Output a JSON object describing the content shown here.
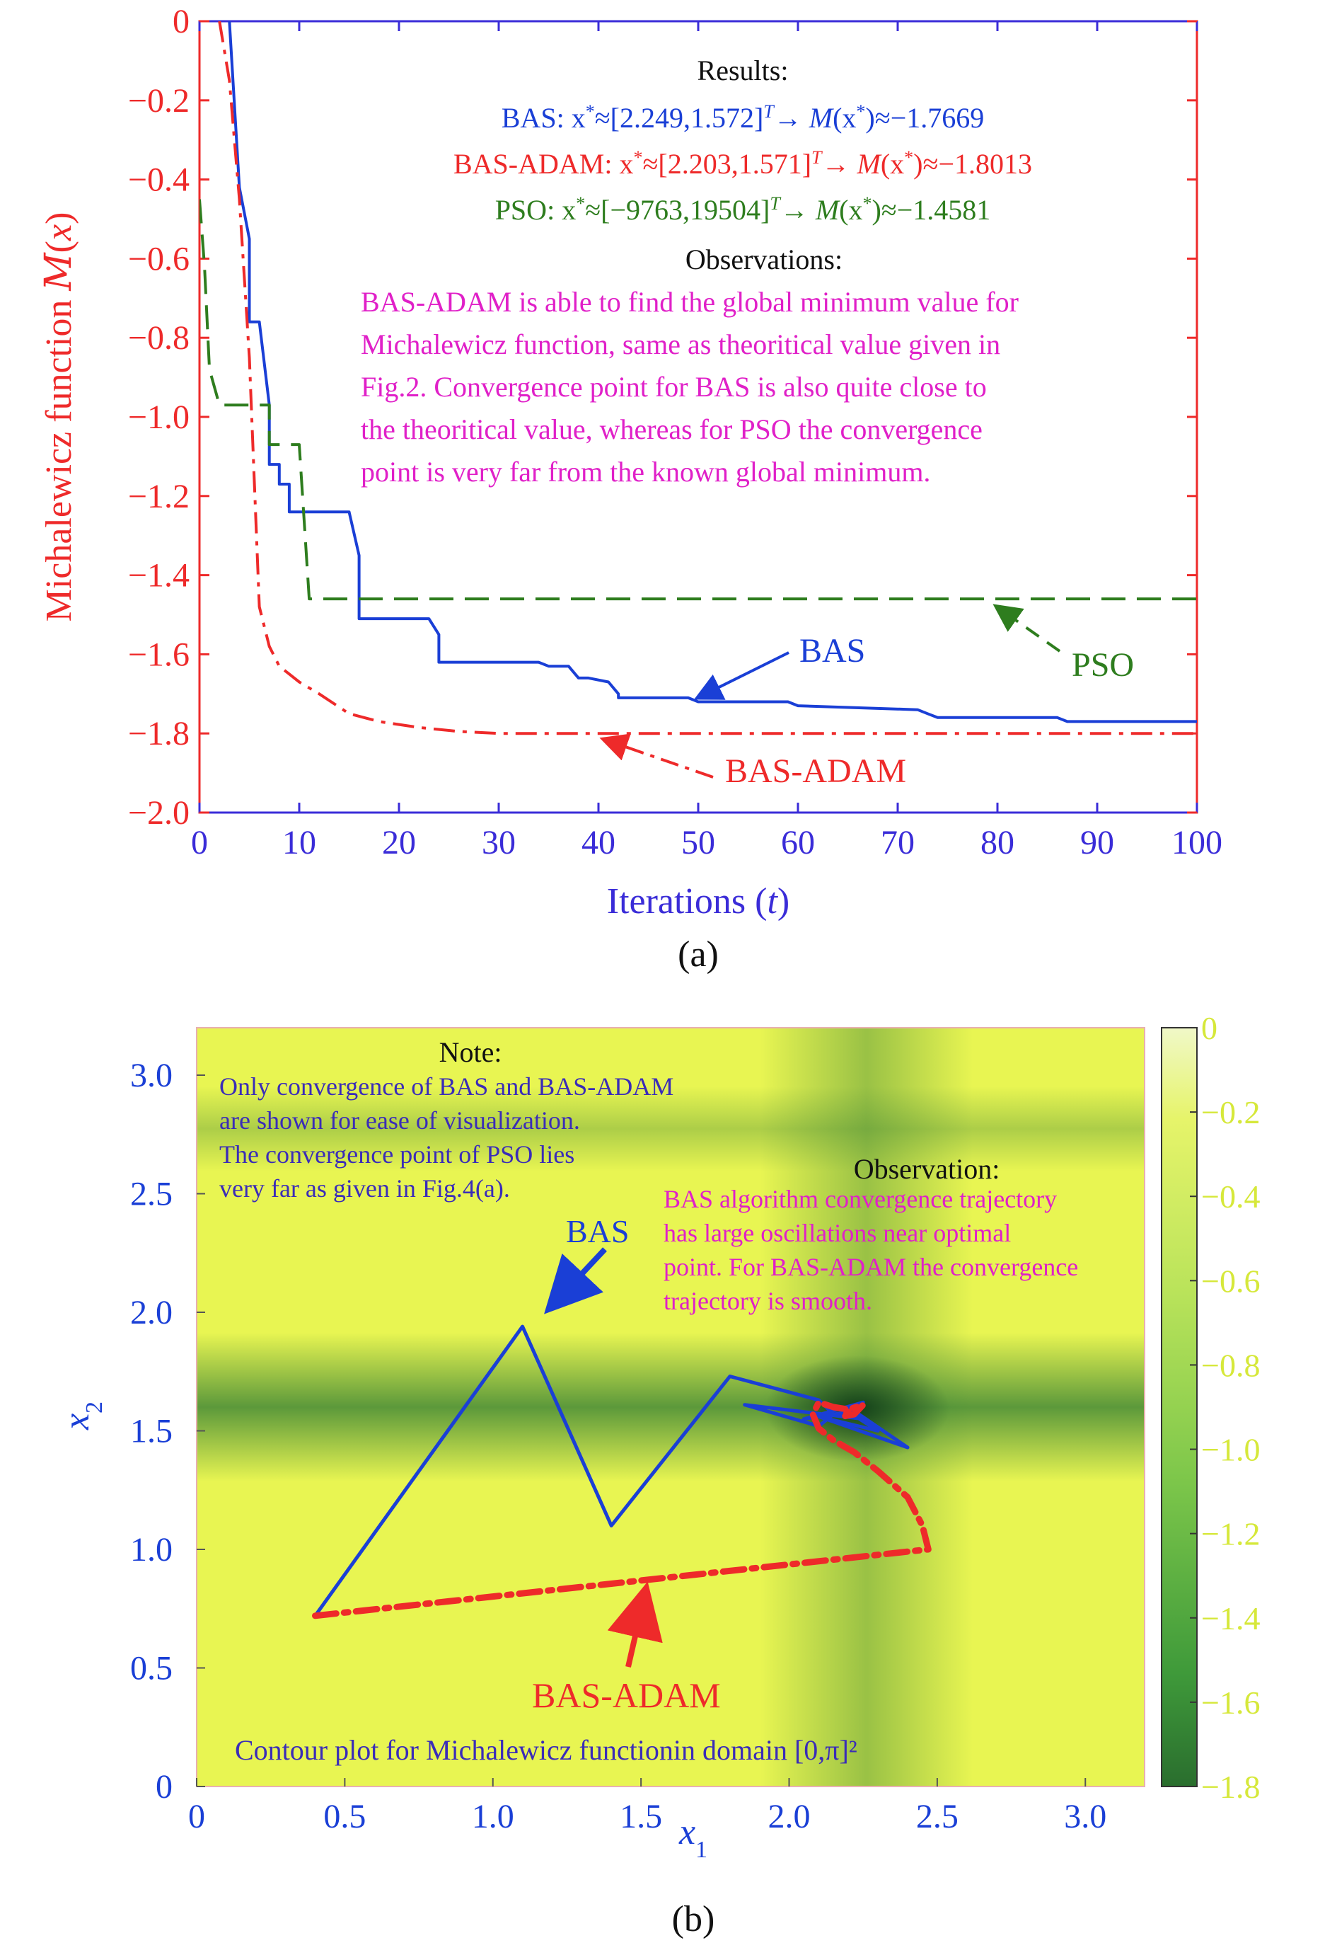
{
  "colors": {
    "bas": "#1a3fd6",
    "bas_adam": "#ee2a2a",
    "pso": "#2e7d1e",
    "observation_text": "#e020c8",
    "note_text": "#3a2cb8",
    "axis_a_y": "#ee2a2a",
    "axis_a_x": "#3a2cd8",
    "axis_b": "#1a3fd6",
    "contour_light": "#e8f552",
    "contour_mid": "#8fcf4a",
    "contour_dark": "#2d7a33",
    "colorbar_tick_text": "#d6e83a"
  },
  "chart_data": [
    {
      "id": "a",
      "type": "line",
      "panel_label": "(a)",
      "xlabel": "Iterations (t)",
      "ylabel": "Michalewicz function M(x)",
      "xlim": [
        0,
        100
      ],
      "ylim": [
        -2.0,
        0
      ],
      "xticks": [
        0,
        10,
        20,
        30,
        40,
        50,
        60,
        70,
        80,
        90,
        100
      ],
      "yticks": [
        0,
        -0.2,
        -0.4,
        -0.6,
        -0.8,
        -1.0,
        -1.2,
        -1.4,
        -1.6,
        -1.8,
        -2.0
      ],
      "xtick_labels": [
        "0",
        "10",
        "20",
        "30",
        "40",
        "50",
        "60",
        "70",
        "80",
        "90",
        "100"
      ],
      "ytick_labels": [
        "0",
        "−0.2",
        "−0.4",
        "−0.6",
        "−0.8",
        "−1.0",
        "−1.2",
        "−1.4",
        "−1.6",
        "−1.8",
        "−2.0"
      ],
      "grid": false,
      "series": [
        {
          "name": "BAS",
          "style": "solid",
          "x": [
            3,
            4,
            5,
            5,
            6,
            7,
            7,
            8,
            8,
            9,
            9,
            15,
            16,
            16,
            23,
            24,
            24,
            34,
            35,
            37,
            38,
            39,
            41,
            42,
            42,
            49,
            50,
            59,
            60,
            72,
            73,
            74,
            86,
            87,
            100
          ],
          "y": [
            0,
            -0.42,
            -0.55,
            -0.76,
            -0.76,
            -0.97,
            -1.12,
            -1.12,
            -1.17,
            -1.17,
            -1.24,
            -1.24,
            -1.35,
            -1.51,
            -1.51,
            -1.55,
            -1.62,
            -1.62,
            -1.63,
            -1.63,
            -1.66,
            -1.66,
            -1.67,
            -1.7,
            -1.71,
            -1.71,
            -1.72,
            -1.72,
            -1.73,
            -1.74,
            -1.75,
            -1.76,
            -1.76,
            -1.77,
            -1.77
          ]
        },
        {
          "name": "BAS-ADAM",
          "style": "dashdot",
          "x": [
            2,
            3,
            4,
            5,
            6,
            7,
            8,
            9,
            10,
            12,
            15,
            18,
            22,
            26,
            30,
            40,
            50,
            100
          ],
          "y": [
            0,
            -0.15,
            -0.45,
            -0.85,
            -1.48,
            -1.58,
            -1.63,
            -1.65,
            -1.67,
            -1.7,
            -1.75,
            -1.77,
            -1.785,
            -1.795,
            -1.8,
            -1.8,
            -1.8,
            -1.8
          ]
        },
        {
          "name": "PSO",
          "style": "dashed",
          "x": [
            0,
            0.5,
            1,
            2,
            6,
            7,
            7,
            10,
            10,
            11,
            12,
            100
          ],
          "y": [
            -0.45,
            -0.62,
            -0.88,
            -0.97,
            -0.97,
            -0.97,
            -1.07,
            -1.07,
            -1.07,
            -1.46,
            -1.46,
            -1.46
          ]
        }
      ],
      "results_title": "Results:",
      "results": [
        {
          "series": "BAS",
          "method": "BAS:",
          "x_star": "[2.249,1.572]",
          "value": "−1.7669"
        },
        {
          "series": "BAS-ADAM",
          "method": "BAS-ADAM:",
          "x_star": "[2.203,1.571]",
          "value": "−1.8013"
        },
        {
          "series": "PSO",
          "method": "PSO:",
          "x_star": "[−9763,19504]",
          "value": "−1.4581"
        }
      ],
      "observations_title": "Observations:",
      "observations_lines": [
        "BAS-ADAM is able to find the global minimum value for",
        "Michalewicz function, same as theoritical value given in",
        "Fig.2. Convergence point for BAS is also quite close to",
        "the theoritical value, whereas for PSO the convergence",
        "point is very far from the known global minimum."
      ],
      "arrow_labels": {
        "bas": "BAS",
        "bas_adam": "BAS-ADAM",
        "pso": "PSO"
      }
    },
    {
      "id": "b",
      "type": "heatmap",
      "panel_label": "(b)",
      "xlabel": "x1",
      "ylabel": "x2",
      "xlim": [
        0,
        3.2
      ],
      "ylim": [
        0,
        3.2
      ],
      "xticks": [
        0,
        0.5,
        1.0,
        1.5,
        2.0,
        2.5,
        3.0
      ],
      "yticks": [
        0,
        0.5,
        1.0,
        1.5,
        2.0,
        2.5,
        3.0
      ],
      "xtick_labels": [
        "0",
        "0.5",
        "1.0",
        "1.5",
        "2.0",
        "2.5",
        "3.0"
      ],
      "ytick_labels": [
        "0",
        "0.5",
        "1.0",
        "1.5",
        "2.0",
        "2.5",
        "3.0"
      ],
      "colorbar_range": [
        -1.8,
        0
      ],
      "colorbar_ticks": [
        0,
        -0.2,
        -0.4,
        -0.6,
        -0.8,
        -1.0,
        -1.2,
        -1.4,
        -1.6,
        -1.8
      ],
      "colorbar_tick_labels": [
        "0",
        "−0.2",
        "−0.4",
        "−0.6",
        "−0.8",
        "−1.0",
        "−1.2",
        "−1.4",
        "−1.6",
        "−1.8"
      ],
      "trajectories": [
        {
          "name": "BAS",
          "style": "solid",
          "points": [
            [
              0.4,
              0.72
            ],
            [
              1.1,
              1.94
            ],
            [
              1.4,
              1.1
            ],
            [
              1.8,
              1.73
            ],
            [
              2.1,
              1.63
            ],
            [
              2.15,
              1.57
            ],
            [
              2.1,
              1.52
            ],
            [
              1.85,
              1.61
            ],
            [
              2.25,
              1.55
            ],
            [
              2.2,
              1.6
            ],
            [
              2.4,
              1.43
            ],
            [
              2.1,
              1.56
            ],
            [
              2.3,
              1.5
            ],
            [
              2.2,
              1.58
            ],
            [
              2.05,
              1.55
            ],
            [
              2.25,
              1.62
            ],
            [
              2.2,
              1.57
            ]
          ]
        },
        {
          "name": "BAS-ADAM",
          "style": "dashdot",
          "points": [
            [
              0.4,
              0.72
            ],
            [
              2.47,
              1.0
            ],
            [
              2.45,
              1.1
            ],
            [
              2.4,
              1.22
            ],
            [
              2.3,
              1.33
            ],
            [
              2.22,
              1.41
            ],
            [
              2.15,
              1.46
            ],
            [
              2.1,
              1.51
            ],
            [
              2.08,
              1.57
            ],
            [
              2.1,
              1.62
            ],
            [
              2.15,
              1.6
            ],
            [
              2.2,
              1.59
            ],
            [
              2.25,
              1.61
            ],
            [
              2.22,
              1.57
            ],
            [
              2.18,
              1.56
            ],
            [
              2.2,
              1.58
            ]
          ]
        }
      ],
      "note_title": "Note:",
      "note_lines": [
        "Only convergence of BAS and BAS-ADAM",
        "are shown for ease of visualization.",
        "The convergence point of PSO lies",
        "very far as given in Fig.4(a)."
      ],
      "observation_title": "Observation:",
      "observation_lines": [
        "BAS algorithm convergence trajectory",
        "has large oscillations near optimal",
        "point. For BAS-ADAM the convergence",
        "trajectory is smooth."
      ],
      "arrow_labels": {
        "bas": "BAS",
        "bas_adam": "BAS-ADAM"
      },
      "caption": "Contour plot for Michalewicz functionin domain [0,π]²"
    }
  ]
}
